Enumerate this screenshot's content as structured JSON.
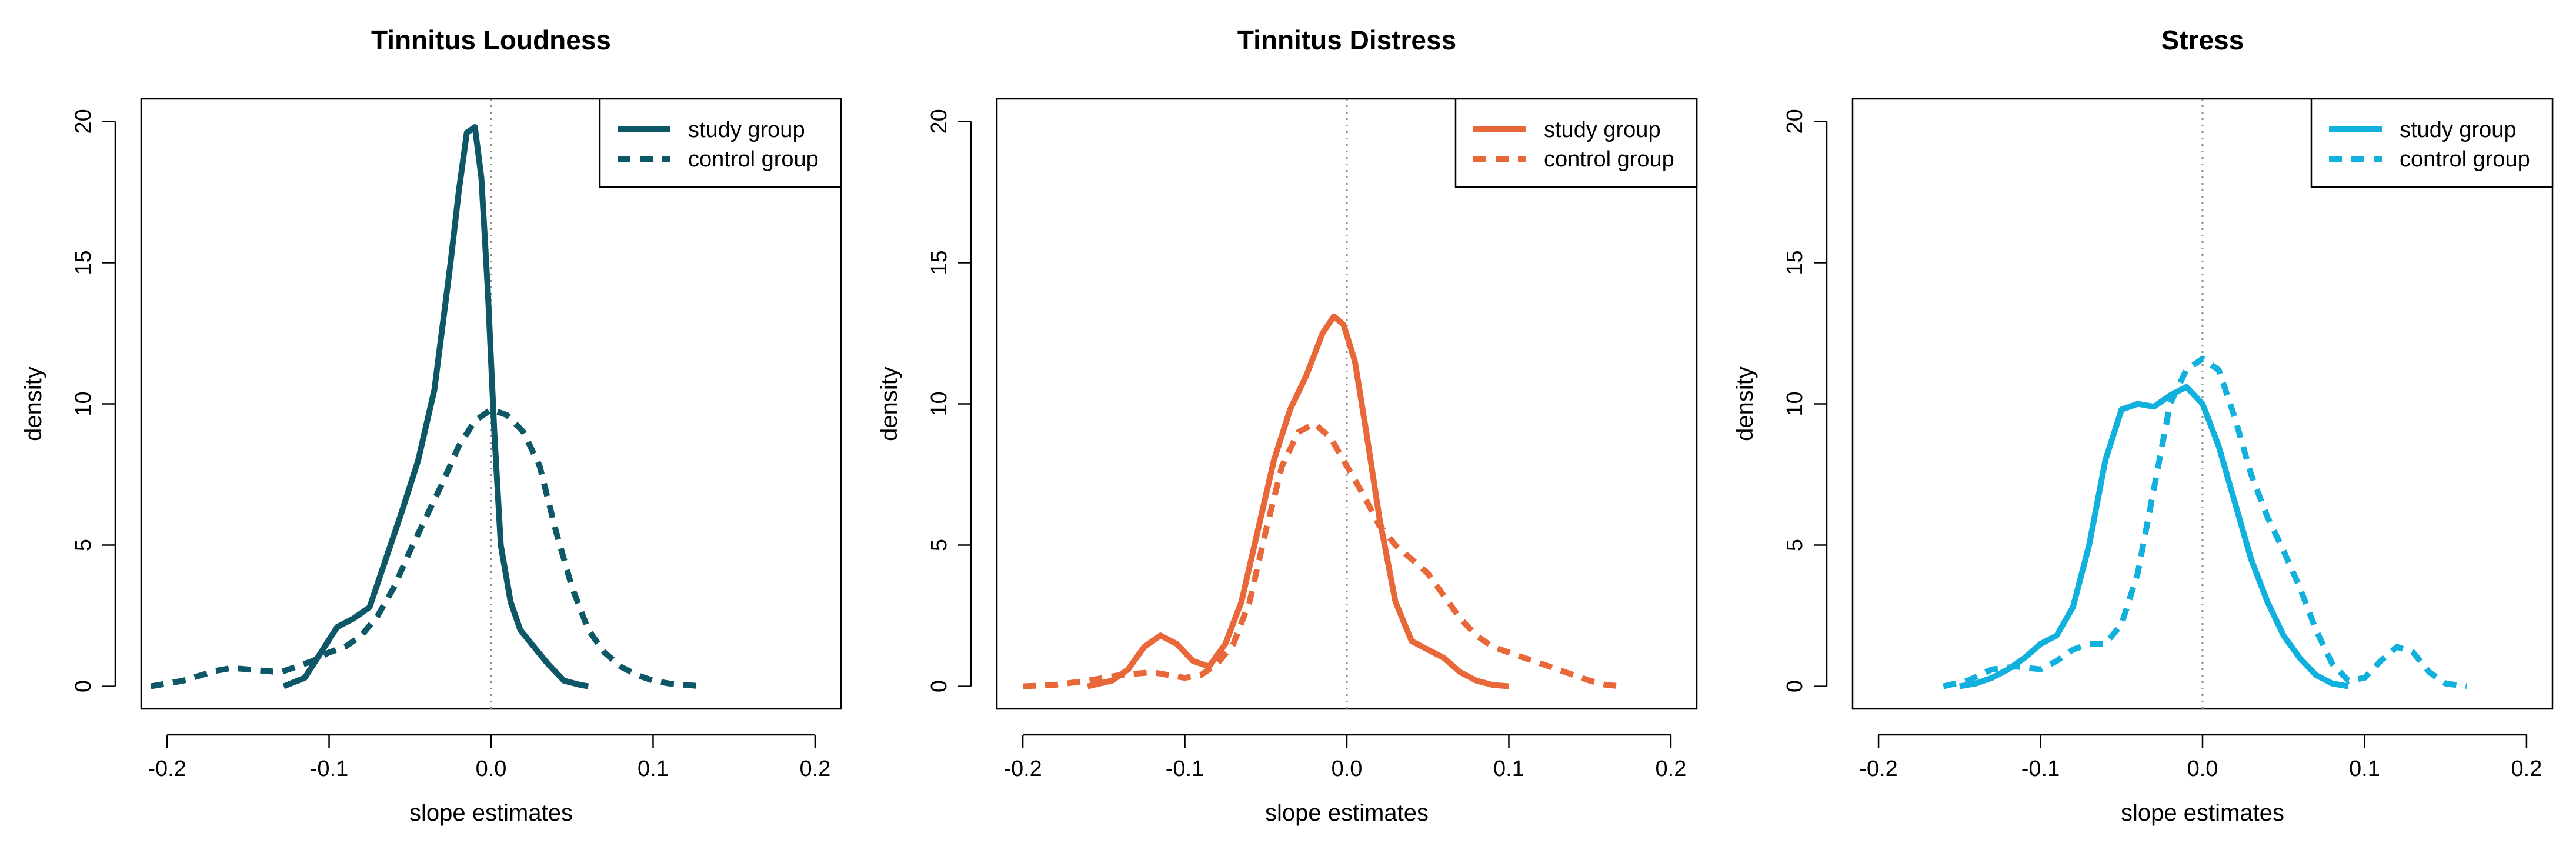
{
  "chart_data": [
    {
      "type": "line",
      "title": "Tinnitus Loudness",
      "xlabel": "slope estimates",
      "ylabel": "density",
      "xlim": [
        -0.2,
        0.2
      ],
      "ylim": [
        0,
        20
      ],
      "xticks": [
        "-0.2",
        "-0.1",
        "0.0",
        "0.1",
        "0.2"
      ],
      "yticks": [
        "0",
        "5",
        "10",
        "15",
        "20"
      ],
      "reference_line_x": 0,
      "legend": {
        "position": "top-right"
      },
      "series": [
        {
          "name": "study group",
          "style": "solid",
          "color": "#0d5766",
          "x": [
            -0.128,
            -0.115,
            -0.105,
            -0.095,
            -0.085,
            -0.075,
            -0.065,
            -0.055,
            -0.045,
            -0.035,
            -0.025,
            -0.02,
            -0.015,
            -0.01,
            -0.006,
            -0.002,
            0.002,
            0.006,
            0.012,
            0.018,
            0.025,
            0.035,
            0.045,
            0.055,
            0.06
          ],
          "values": [
            0.0,
            0.3,
            1.2,
            2.1,
            2.4,
            2.8,
            4.5,
            6.2,
            8.0,
            10.5,
            15.0,
            17.5,
            19.6,
            19.8,
            18.0,
            14.0,
            9.0,
            5.0,
            3.0,
            2.0,
            1.5,
            0.8,
            0.2,
            0.05,
            0.0
          ]
        },
        {
          "name": "control group",
          "style": "dashed",
          "color": "#0d5766",
          "x": [
            -0.21,
            -0.19,
            -0.17,
            -0.16,
            -0.15,
            -0.13,
            -0.11,
            -0.1,
            -0.09,
            -0.08,
            -0.07,
            -0.06,
            -0.05,
            -0.04,
            -0.03,
            -0.02,
            -0.01,
            0.0,
            0.01,
            0.02,
            0.03,
            0.04,
            0.05,
            0.06,
            0.07,
            0.08,
            0.09,
            0.1,
            0.11,
            0.12,
            0.13
          ],
          "values": [
            0.0,
            0.2,
            0.55,
            0.65,
            0.6,
            0.5,
            0.9,
            1.2,
            1.4,
            1.8,
            2.5,
            3.5,
            4.8,
            6.0,
            7.2,
            8.5,
            9.4,
            9.8,
            9.6,
            9.0,
            7.8,
            5.5,
            3.5,
            2.0,
            1.2,
            0.7,
            0.4,
            0.2,
            0.1,
            0.05,
            0.0
          ]
        }
      ]
    },
    {
      "type": "line",
      "title": "Tinnitus Distress",
      "xlabel": "slope estimates",
      "ylabel": "density",
      "xlim": [
        -0.2,
        0.2
      ],
      "ylim": [
        0,
        20
      ],
      "xticks": [
        "-0.2",
        "-0.1",
        "0.0",
        "0.1",
        "0.2"
      ],
      "yticks": [
        "0",
        "5",
        "10",
        "15",
        "20"
      ],
      "reference_line_x": 0,
      "legend": {
        "position": "top-right"
      },
      "series": [
        {
          "name": "study group",
          "style": "solid",
          "color": "#e8683a",
          "x": [
            -0.16,
            -0.145,
            -0.135,
            -0.125,
            -0.115,
            -0.105,
            -0.095,
            -0.085,
            -0.075,
            -0.065,
            -0.055,
            -0.045,
            -0.035,
            -0.025,
            -0.015,
            -0.008,
            -0.002,
            0.005,
            0.012,
            0.02,
            0.03,
            0.04,
            0.05,
            0.06,
            0.07,
            0.08,
            0.09,
            0.1
          ],
          "values": [
            0.0,
            0.2,
            0.6,
            1.4,
            1.8,
            1.5,
            0.9,
            0.7,
            1.5,
            3.0,
            5.5,
            8.0,
            9.8,
            11.0,
            12.5,
            13.1,
            12.8,
            11.5,
            9.0,
            6.0,
            3.0,
            1.6,
            1.3,
            1.0,
            0.5,
            0.2,
            0.05,
            0.0
          ]
        },
        {
          "name": "control group",
          "style": "dashed",
          "color": "#e8683a",
          "x": [
            -0.2,
            -0.18,
            -0.16,
            -0.14,
            -0.12,
            -0.1,
            -0.09,
            -0.08,
            -0.07,
            -0.06,
            -0.05,
            -0.04,
            -0.03,
            -0.02,
            -0.01,
            0.0,
            0.01,
            0.02,
            0.03,
            0.04,
            0.05,
            0.06,
            0.07,
            0.08,
            0.09,
            0.1,
            0.11,
            0.12,
            0.13,
            0.14,
            0.15,
            0.16,
            0.17
          ],
          "values": [
            0.0,
            0.05,
            0.2,
            0.4,
            0.5,
            0.3,
            0.4,
            0.8,
            1.5,
            3.0,
            5.5,
            7.8,
            9.0,
            9.3,
            8.8,
            7.8,
            6.8,
            5.7,
            5.0,
            4.5,
            4.0,
            3.2,
            2.4,
            1.8,
            1.4,
            1.2,
            1.0,
            0.8,
            0.6,
            0.4,
            0.2,
            0.05,
            0.0
          ]
        }
      ]
    },
    {
      "type": "line",
      "title": "Stress",
      "xlabel": "slope estimates",
      "ylabel": "density",
      "xlim": [
        -0.2,
        0.2
      ],
      "ylim": [
        0,
        20
      ],
      "xticks": [
        "-0.2",
        "-0.1",
        "0.0",
        "0.1",
        "0.2"
      ],
      "yticks": [
        "0",
        "5",
        "10",
        "15",
        "20"
      ],
      "reference_line_x": 0,
      "legend": {
        "position": "top-right"
      },
      "series": [
        {
          "name": "study group",
          "style": "solid",
          "color": "#12b0dd",
          "x": [
            -0.15,
            -0.14,
            -0.13,
            -0.12,
            -0.11,
            -0.1,
            -0.09,
            -0.08,
            -0.07,
            -0.06,
            -0.05,
            -0.04,
            -0.03,
            -0.02,
            -0.01,
            0.0,
            0.01,
            0.02,
            0.03,
            0.04,
            0.05,
            0.06,
            0.07,
            0.08,
            0.09
          ],
          "values": [
            0.0,
            0.1,
            0.3,
            0.6,
            1.0,
            1.5,
            1.8,
            2.8,
            5.0,
            8.0,
            9.8,
            10.0,
            9.9,
            10.3,
            10.6,
            10.0,
            8.5,
            6.5,
            4.5,
            3.0,
            1.8,
            1.0,
            0.4,
            0.1,
            0.0
          ]
        },
        {
          "name": "control group",
          "style": "dashed",
          "color": "#12b0dd",
          "x": [
            -0.16,
            -0.145,
            -0.13,
            -0.115,
            -0.1,
            -0.09,
            -0.08,
            -0.07,
            -0.06,
            -0.05,
            -0.04,
            -0.03,
            -0.02,
            -0.01,
            0.0,
            0.01,
            0.02,
            0.03,
            0.04,
            0.05,
            0.06,
            0.07,
            0.08,
            0.09,
            0.1,
            0.11,
            0.12,
            0.13,
            0.14,
            0.15,
            0.163
          ],
          "values": [
            0.0,
            0.2,
            0.6,
            0.7,
            0.6,
            0.9,
            1.3,
            1.5,
            1.5,
            2.2,
            4.0,
            7.0,
            10.0,
            11.2,
            11.6,
            11.2,
            9.5,
            7.5,
            6.0,
            4.8,
            3.5,
            2.0,
            0.8,
            0.2,
            0.3,
            0.9,
            1.4,
            1.2,
            0.5,
            0.1,
            0.0
          ]
        }
      ]
    }
  ]
}
